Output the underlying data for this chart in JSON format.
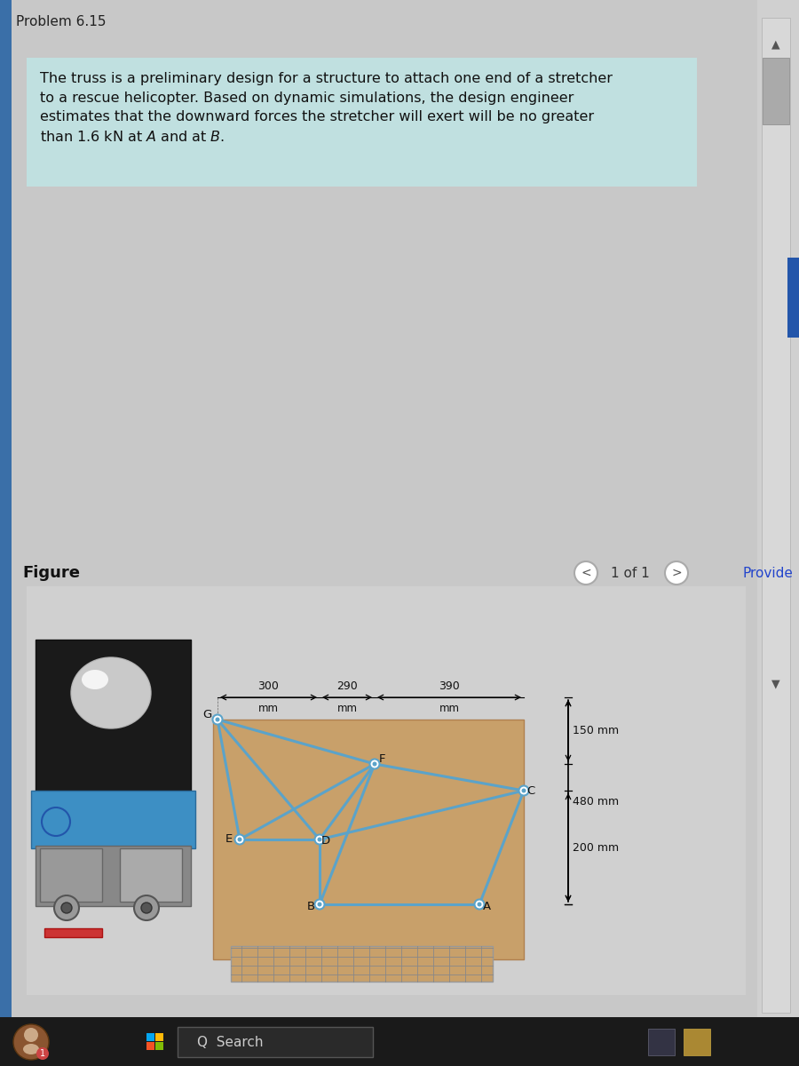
{
  "title": "Problem 6.15",
  "description_text": "The truss is a preliminary design for a structure to attach one end of a stretcher\nto a rescue helicopter. Based on dynamic simulations, the design engineer\nestimates that the downward forces the stretcher will exert will be no greater\nthan 1.6 kN at $A$ and at $B$.",
  "figure_label": "Figure",
  "page_label": "1 of 1",
  "bg_color": "#c8c8c8",
  "text_box_color": "#c0e0e0",
  "truss_color": "#5ba3c9",
  "truss_lw": 2.2,
  "stretcher_color": "#c8a06a",
  "dim_labels": [
    "300\nmm",
    "290\nmm",
    "390\nmm"
  ],
  "dim_vert": [
    "150 mm",
    "480 mm",
    "200 mm"
  ],
  "node_names": [
    "G",
    "F",
    "C",
    "E",
    "D",
    "B",
    "A"
  ],
  "members": [
    [
      "G",
      "F"
    ],
    [
      "G",
      "E"
    ],
    [
      "G",
      "D"
    ],
    [
      "F",
      "C"
    ],
    [
      "F",
      "D"
    ],
    [
      "F",
      "E"
    ],
    [
      "F",
      "B"
    ],
    [
      "E",
      "D"
    ],
    [
      "D",
      "C"
    ],
    [
      "D",
      "B"
    ],
    [
      "C",
      "A"
    ],
    [
      "B",
      "A"
    ]
  ],
  "taskbar_color": "#1a1a1a",
  "scrollbar_color": "#c0c0c0",
  "scrollthumb_color": "#888888"
}
